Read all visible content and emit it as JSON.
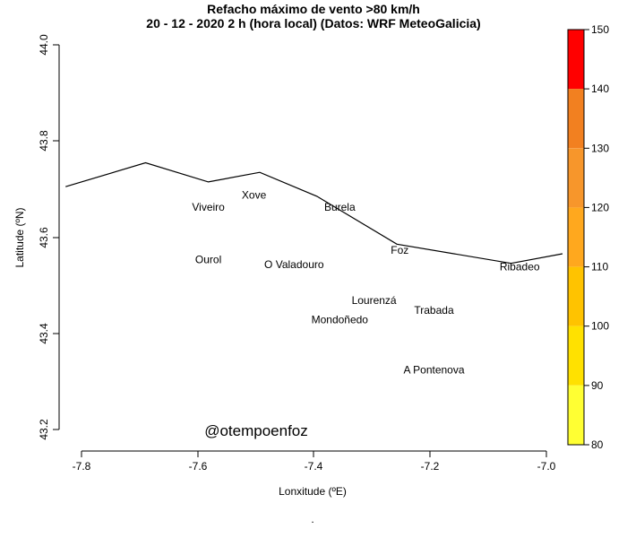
{
  "title_line1": "Refacho máximo de vento >80 km/h",
  "title_line2": "20 - 12 - 2020 2 h (hora local) (Datos: WRF MeteoGalicia)",
  "xlabel": "Lonxitude (ºE)",
  "ylabel": "Latitude (ºN)",
  "credit": "@otempoenfoz",
  "footer_mark": ".",
  "x_ticks": [
    "-7.8",
    "-7.6",
    "-7.4",
    "-7.2",
    "-7.0"
  ],
  "y_ticks": [
    "43.2",
    "43.4",
    "43.6",
    "43.8",
    "44.0"
  ],
  "map": {
    "xlim": [
      -7.845,
      -6.97
    ],
    "ylim": [
      43.16,
      44.04
    ],
    "coastline": [
      [
        -7.84,
        43.71
      ],
      [
        -7.7,
        43.76
      ],
      [
        -7.59,
        43.72
      ],
      [
        -7.5,
        43.74
      ],
      [
        -7.4,
        43.69
      ],
      [
        -7.26,
        43.59
      ],
      [
        -7.06,
        43.55
      ],
      [
        -6.97,
        43.57
      ]
    ],
    "places": [
      {
        "name": "Xove",
        "lon": -7.51,
        "lat": 43.685
      },
      {
        "name": "Viveiro",
        "lon": -7.59,
        "lat": 43.66
      },
      {
        "name": "Burela",
        "lon": -7.36,
        "lat": 43.66
      },
      {
        "name": "Foz",
        "lon": -7.255,
        "lat": 43.57
      },
      {
        "name": "Ribadeo",
        "lon": -7.045,
        "lat": 43.535
      },
      {
        "name": "Ourol",
        "lon": -7.59,
        "lat": 43.55
      },
      {
        "name": "O Valadouro",
        "lon": -7.44,
        "lat": 43.54
      },
      {
        "name": "Lourenzá",
        "lon": -7.3,
        "lat": 43.465
      },
      {
        "name": "Trabada",
        "lon": -7.195,
        "lat": 43.445
      },
      {
        "name": "Mondoñedo",
        "lon": -7.36,
        "lat": 43.425
      },
      {
        "name": "A Pontenova",
        "lon": -7.195,
        "lat": 43.32
      }
    ]
  },
  "colorbar": {
    "values": [
      80,
      150
    ],
    "tick_labels": [
      "80",
      "90",
      "100",
      "110",
      "120",
      "130",
      "140",
      "150"
    ],
    "bands": [
      {
        "from": 80,
        "to": 90,
        "color": "#FFFF33"
      },
      {
        "from": 90,
        "to": 100,
        "color": "#FFE100"
      },
      {
        "from": 100,
        "to": 110,
        "color": "#FFC300"
      },
      {
        "from": 110,
        "to": 120,
        "color": "#FFA81E"
      },
      {
        "from": 120,
        "to": 130,
        "color": "#F7962B"
      },
      {
        "from": 130,
        "to": 140,
        "color": "#F28020"
      },
      {
        "from": 140,
        "to": 150,
        "color": "#FF0000"
      }
    ]
  },
  "colors": {
    "coastline": "#000000",
    "axes": "#000000",
    "text": "#000000"
  }
}
